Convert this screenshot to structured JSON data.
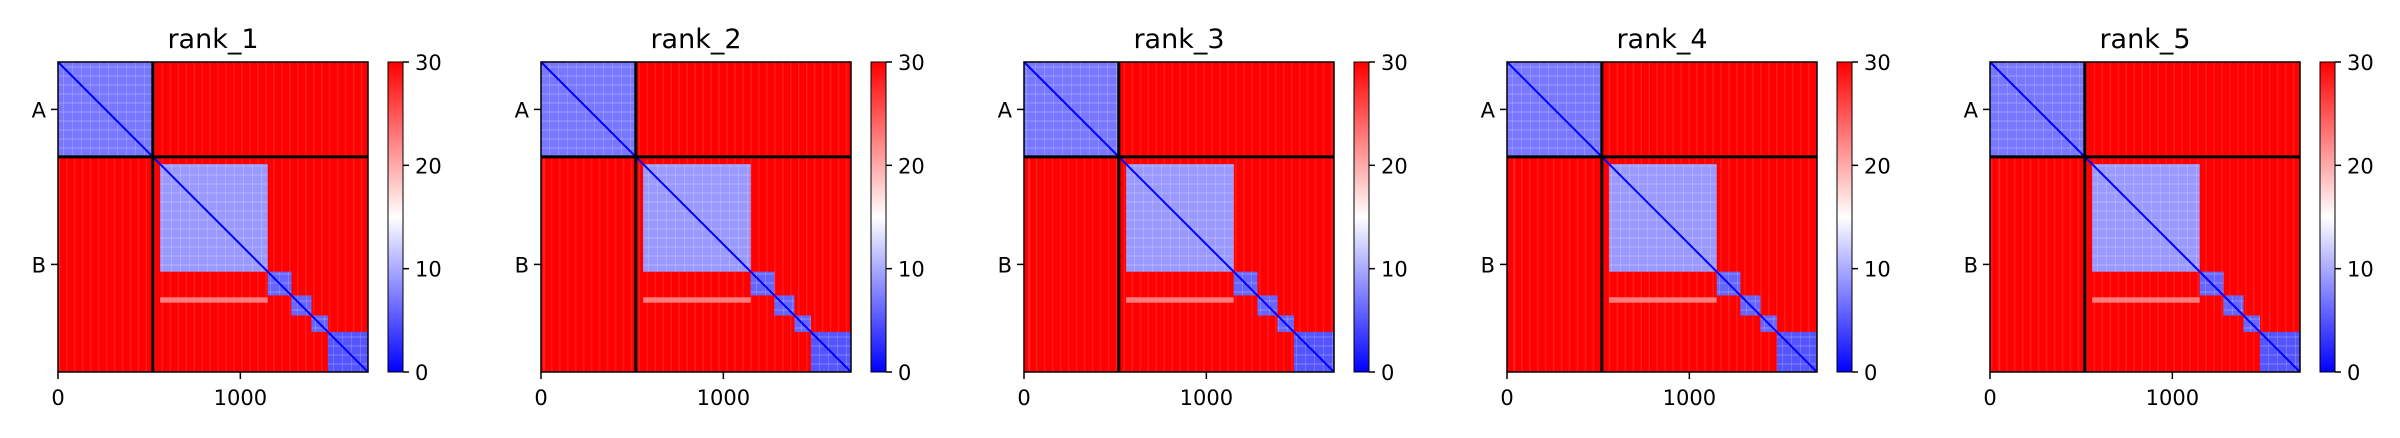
{
  "chart_data": {
    "type": "heatmap",
    "colormap": "bwr",
    "colorbar": {
      "min": 0,
      "max": 30,
      "ticks": [
        0,
        10,
        20,
        30
      ]
    },
    "x_range": [
      0,
      1700
    ],
    "x_ticks": [
      0,
      1000
    ],
    "chain_boundary": 520,
    "chains": [
      {
        "label": "A",
        "start": 0,
        "end": 520
      },
      {
        "label": "B",
        "start": 520,
        "end": 1700
      }
    ],
    "inter_chain_level": 30,
    "intra_chain_domains": [
      {
        "start": 0,
        "end": 520,
        "level": 7
      },
      {
        "start": 560,
        "end": 1150,
        "level": 9
      },
      {
        "start": 1150,
        "end": 1280,
        "level": 6
      },
      {
        "start": 1280,
        "end": 1390,
        "level": 6
      },
      {
        "start": 1390,
        "end": 1480,
        "level": 6
      },
      {
        "start": 1480,
        "end": 1700,
        "level": 5
      }
    ],
    "panels": [
      {
        "title": "rank_1"
      },
      {
        "title": "rank_2"
      },
      {
        "title": "rank_3"
      },
      {
        "title": "rank_4"
      },
      {
        "title": "rank_5"
      }
    ]
  }
}
